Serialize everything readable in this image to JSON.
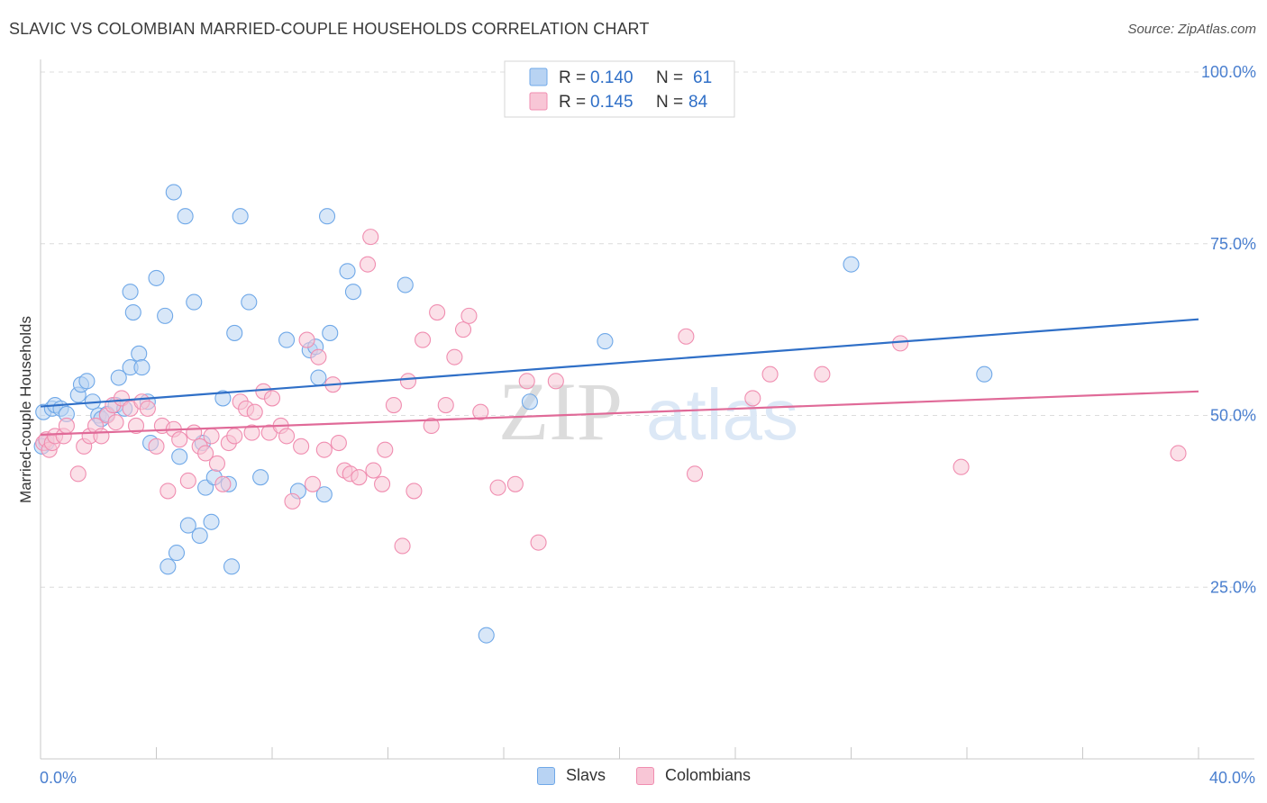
{
  "title": "SLAVIC VS COLOMBIAN MARRIED-COUPLE HOUSEHOLDS CORRELATION CHART",
  "source": "Source: ZipAtlas.com",
  "watermark": {
    "zip": "ZIP",
    "atlas": "atlas"
  },
  "legend_top": [
    {
      "r_label": "R =",
      "r_value": "0.140",
      "n_label": "N =",
      "n_value": "61",
      "color": "#6fa8e8"
    },
    {
      "r_label": "R =",
      "r_value": "0.145",
      "n_label": "N =",
      "n_value": "84",
      "color": "#f08db0"
    }
  ],
  "legend_bottom": [
    {
      "label": "Slavs",
      "color": "#6fa8e8"
    },
    {
      "label": "Colombians",
      "color": "#f08db0"
    }
  ],
  "colors": {
    "slavs_fill": "#b8d3f3",
    "slavs_stroke": "#6fa8e8",
    "slavs_line": "#2f6fc7",
    "colombians_fill": "#f8c6d6",
    "colombians_stroke": "#f08db0",
    "colombians_line": "#e06a98",
    "tick_label": "#4a7fcf",
    "grid": "#dcdcdc"
  },
  "chart_data": {
    "type": "scatter",
    "title": "SLAVIC VS COLOMBIAN MARRIED-COUPLE HOUSEHOLDS CORRELATION CHART",
    "xlabel": "",
    "ylabel": "Married-couple Households",
    "xlim": [
      0,
      40
    ],
    "ylim": [
      0,
      105
    ],
    "x_tick_labels": [
      {
        "value": 0,
        "label": "0.0%"
      },
      {
        "value": 40,
        "label": "40.0%"
      }
    ],
    "y_tick_labels": [
      {
        "value": 100,
        "label": "100.0%"
      },
      {
        "value": 75,
        "label": "75.0%"
      },
      {
        "value": 50,
        "label": "50.0%"
      },
      {
        "value": 25,
        "label": "25.0%"
      }
    ],
    "series": [
      {
        "name": "Slavs",
        "R": 0.14,
        "N": 61,
        "trend": {
          "x": [
            0,
            40
          ],
          "y": [
            51.3,
            64.0
          ]
        },
        "points": [
          [
            0.1,
            50.5
          ],
          [
            0.2,
            46.0
          ],
          [
            0.4,
            51.0
          ],
          [
            0.5,
            51.5
          ],
          [
            0.7,
            51.0
          ],
          [
            0.9,
            50.2
          ],
          [
            1.3,
            53.0
          ],
          [
            1.4,
            54.5
          ],
          [
            1.6,
            55.0
          ],
          [
            1.8,
            52.0
          ],
          [
            2.0,
            50.0
          ],
          [
            2.1,
            49.5
          ],
          [
            2.3,
            50.2
          ],
          [
            2.6,
            51.5
          ],
          [
            2.7,
            55.5
          ],
          [
            2.9,
            51.0
          ],
          [
            3.1,
            57.0
          ],
          [
            3.1,
            68.0
          ],
          [
            3.2,
            65.0
          ],
          [
            3.4,
            59.0
          ],
          [
            3.5,
            57.0
          ],
          [
            3.7,
            52.0
          ],
          [
            3.8,
            46.0
          ],
          [
            4.0,
            70.0
          ],
          [
            4.3,
            64.5
          ],
          [
            4.4,
            28.0
          ],
          [
            4.6,
            82.5
          ],
          [
            4.7,
            30.0
          ],
          [
            4.8,
            44.0
          ],
          [
            5.0,
            79.0
          ],
          [
            5.1,
            34.0
          ],
          [
            5.3,
            66.5
          ],
          [
            5.5,
            32.5
          ],
          [
            5.6,
            46.0
          ],
          [
            5.7,
            39.5
          ],
          [
            5.9,
            34.5
          ],
          [
            6.0,
            41.0
          ],
          [
            6.3,
            52.5
          ],
          [
            6.5,
            40.0
          ],
          [
            6.6,
            28.0
          ],
          [
            6.7,
            62.0
          ],
          [
            6.9,
            79.0
          ],
          [
            7.2,
            66.5
          ],
          [
            7.6,
            41.0
          ],
          [
            8.5,
            61.0
          ],
          [
            8.9,
            39.0
          ],
          [
            9.3,
            59.5
          ],
          [
            9.5,
            60.0
          ],
          [
            9.6,
            55.5
          ],
          [
            9.8,
            38.5
          ],
          [
            9.9,
            79.0
          ],
          [
            10.0,
            62.0
          ],
          [
            10.6,
            71.0
          ],
          [
            10.8,
            68.0
          ],
          [
            12.6,
            69.0
          ],
          [
            15.4,
            18.0
          ],
          [
            16.9,
            52.0
          ],
          [
            19.5,
            60.8
          ],
          [
            28.0,
            72.0
          ],
          [
            32.6,
            56.0
          ],
          [
            0.05,
            45.5
          ]
        ]
      },
      {
        "name": "Colombians",
        "R": 0.145,
        "N": 84,
        "trend": {
          "x": [
            0,
            40
          ],
          "y": [
            47.2,
            53.5
          ]
        },
        "points": [
          [
            0.1,
            46.0
          ],
          [
            0.2,
            46.5
          ],
          [
            0.3,
            45.0
          ],
          [
            0.4,
            46.0
          ],
          [
            0.5,
            47.0
          ],
          [
            0.8,
            47.0
          ],
          [
            0.9,
            48.5
          ],
          [
            1.3,
            41.5
          ],
          [
            1.5,
            45.5
          ],
          [
            1.7,
            47.0
          ],
          [
            1.9,
            48.5
          ],
          [
            2.1,
            47.0
          ],
          [
            2.3,
            50.0
          ],
          [
            2.5,
            51.5
          ],
          [
            2.6,
            49.0
          ],
          [
            2.8,
            52.5
          ],
          [
            3.1,
            51.0
          ],
          [
            3.3,
            48.5
          ],
          [
            3.5,
            52.0
          ],
          [
            3.7,
            51.0
          ],
          [
            4.0,
            45.5
          ],
          [
            4.2,
            48.5
          ],
          [
            4.4,
            39.0
          ],
          [
            4.6,
            48.0
          ],
          [
            4.8,
            46.5
          ],
          [
            5.1,
            40.5
          ],
          [
            5.3,
            47.5
          ],
          [
            5.5,
            45.5
          ],
          [
            5.7,
            44.5
          ],
          [
            5.9,
            47.0
          ],
          [
            6.1,
            43.0
          ],
          [
            6.3,
            40.0
          ],
          [
            6.5,
            46.0
          ],
          [
            6.7,
            47.0
          ],
          [
            6.9,
            52.0
          ],
          [
            7.1,
            51.0
          ],
          [
            7.3,
            47.5
          ],
          [
            7.4,
            50.5
          ],
          [
            7.7,
            53.5
          ],
          [
            7.9,
            47.5
          ],
          [
            8.0,
            52.5
          ],
          [
            8.3,
            48.5
          ],
          [
            8.5,
            47.0
          ],
          [
            8.7,
            37.5
          ],
          [
            9.0,
            45.5
          ],
          [
            9.2,
            61.0
          ],
          [
            9.4,
            40.0
          ],
          [
            9.6,
            58.5
          ],
          [
            9.8,
            45.0
          ],
          [
            10.1,
            54.5
          ],
          [
            10.3,
            46.0
          ],
          [
            10.5,
            42.0
          ],
          [
            10.7,
            41.5
          ],
          [
            11.0,
            41.0
          ],
          [
            11.3,
            72.0
          ],
          [
            11.4,
            76.0
          ],
          [
            11.8,
            40.0
          ],
          [
            11.9,
            45.0
          ],
          [
            12.2,
            51.5
          ],
          [
            12.5,
            31.0
          ],
          [
            12.7,
            55.0
          ],
          [
            12.9,
            39.0
          ],
          [
            13.2,
            61.0
          ],
          [
            13.5,
            48.5
          ],
          [
            13.7,
            65.0
          ],
          [
            14.0,
            51.5
          ],
          [
            14.3,
            58.5
          ],
          [
            14.6,
            62.5
          ],
          [
            14.8,
            64.5
          ],
          [
            15.2,
            50.5
          ],
          [
            15.8,
            39.5
          ],
          [
            16.4,
            40.0
          ],
          [
            16.8,
            55.0
          ],
          [
            17.2,
            31.5
          ],
          [
            17.8,
            55.0
          ],
          [
            22.3,
            61.5
          ],
          [
            22.6,
            41.5
          ],
          [
            24.6,
            52.5
          ],
          [
            25.2,
            56.0
          ],
          [
            27.0,
            56.0
          ],
          [
            29.7,
            60.5
          ],
          [
            31.8,
            42.5
          ],
          [
            39.3,
            44.5
          ],
          [
            11.5,
            42.0
          ]
        ]
      }
    ]
  }
}
